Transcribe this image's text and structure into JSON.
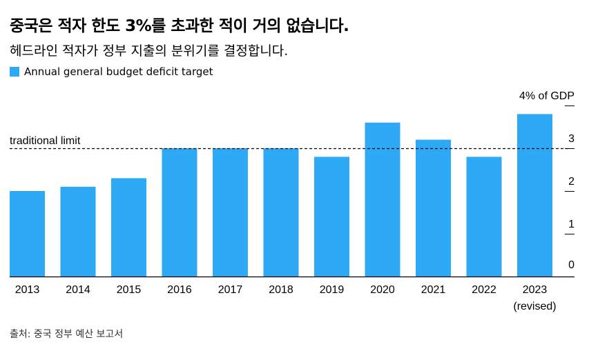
{
  "header": {
    "title": "중국은 적자 한도 3%를 초과한 적이 거의 없습니다.",
    "subtitle": "헤드라인 적자가 정부 지출의 분위기를 결정합니다."
  },
  "legend": {
    "label": "Annual general budget deficit target",
    "color": "#2ea9f5"
  },
  "source": "출처: 중국 정부 예산 보고서",
  "chart_data": {
    "type": "bar",
    "categories": [
      "2013",
      "2014",
      "2015",
      "2016",
      "2017",
      "2018",
      "2019",
      "2020",
      "2021",
      "2022",
      "2023"
    ],
    "category_sublabels": [
      "",
      "",
      "",
      "",
      "",
      "",
      "",
      "",
      "",
      "",
      "(revised)"
    ],
    "series": [
      {
        "name": "Annual general budget deficit target",
        "values": [
          2.0,
          2.1,
          2.3,
          3.0,
          3.0,
          3.0,
          2.8,
          3.6,
          3.2,
          2.8,
          3.8
        ]
      }
    ],
    "ylim": [
      0,
      4
    ],
    "yticks": [
      0,
      1,
      2,
      3,
      4
    ],
    "ytick_labels": [
      "0",
      "1",
      "2",
      "3",
      "4% of GDP"
    ],
    "reference_line": {
      "value": 3,
      "label": "traditional limit",
      "style": "dashed"
    },
    "bar_color": "#2ea9f5",
    "grid": false
  }
}
